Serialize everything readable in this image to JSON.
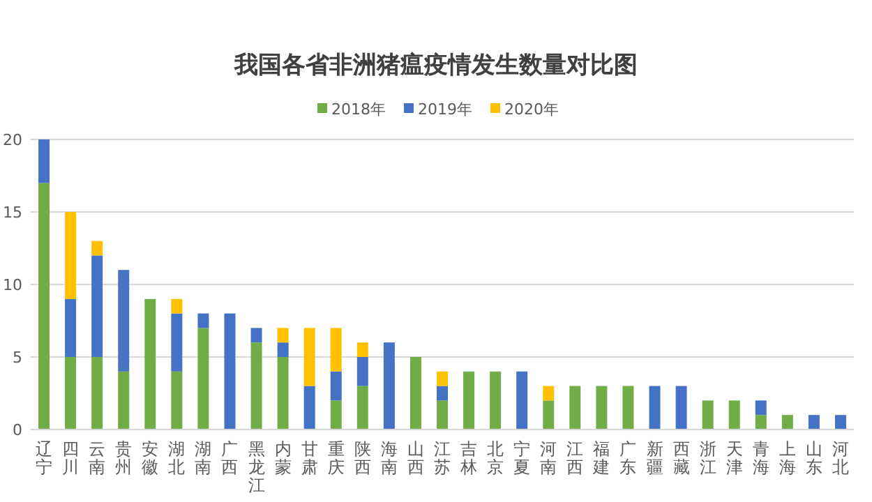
{
  "chart_data": {
    "type": "bar",
    "title": "我国各省非洲猪瘟疫情发生数量对比图",
    "categories": [
      "辽宁",
      "四川",
      "云南",
      "贵州",
      "安徽",
      "湖北",
      "湖南",
      "广西",
      "黑龙江",
      "内蒙",
      "甘肃",
      "重庆",
      "陕西",
      "海南",
      "山西",
      "江苏",
      "吉林",
      "北京",
      "宁夏",
      "河南",
      "江西",
      "福建",
      "广东",
      "新疆",
      "西藏",
      "浙江",
      "天津",
      "青海",
      "上海",
      "山东",
      "河北"
    ],
    "series": [
      {
        "name": "2018年",
        "color": "#70ad47",
        "values": [
          17,
          5,
          5,
          4,
          9,
          4,
          7,
          0,
          6,
          5,
          0,
          2,
          3,
          0,
          5,
          2,
          4,
          4,
          0,
          2,
          3,
          3,
          3,
          0,
          0,
          2,
          2,
          1,
          1,
          0,
          0
        ]
      },
      {
        "name": "2019年",
        "color": "#4472c4",
        "values": [
          3,
          4,
          7,
          7,
          0,
          4,
          1,
          8,
          1,
          1,
          3,
          2,
          2,
          6,
          0,
          1,
          0,
          0,
          4,
          0,
          0,
          0,
          0,
          3,
          3,
          0,
          0,
          1,
          0,
          1,
          1
        ]
      },
      {
        "name": "2020年",
        "color": "#ffc000",
        "values": [
          0,
          6,
          1,
          0,
          0,
          1,
          0,
          0,
          0,
          1,
          4,
          3,
          1,
          0,
          0,
          1,
          0,
          0,
          0,
          1,
          0,
          0,
          0,
          0,
          0,
          0,
          0,
          0,
          0,
          0,
          0
        ]
      }
    ],
    "stacked": true,
    "ylim": [
      0,
      20
    ],
    "yticks": [
      0,
      5,
      10,
      15,
      20
    ],
    "grid": "y",
    "legend": "top"
  }
}
